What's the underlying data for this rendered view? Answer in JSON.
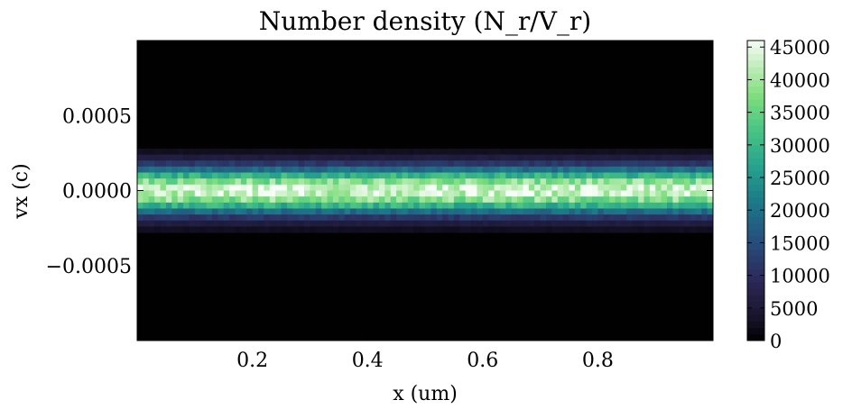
{
  "chart_data": {
    "type": "heatmap",
    "title": "Number density (N_r/V_r)",
    "xlabel": "x (um)",
    "ylabel": "vx (c)",
    "xlim": [
      0.0,
      1.0
    ],
    "ylim": [
      -0.001,
      0.001
    ],
    "x_ticks": [
      {
        "value": 0.2,
        "label": "0.2"
      },
      {
        "value": 0.4,
        "label": "0.4"
      },
      {
        "value": 0.6,
        "label": "0.6"
      },
      {
        "value": 0.8,
        "label": "0.8"
      }
    ],
    "y_ticks": [
      {
        "value": 0.0005,
        "label": "0.0005"
      },
      {
        "value": 0.0,
        "label": "0.0000"
      },
      {
        "value": -0.0005,
        "label": "−0.0005"
      }
    ],
    "colorbar": {
      "min": 0,
      "max": 46000,
      "ticks": [
        {
          "value": 0,
          "label": "0"
        },
        {
          "value": 5000,
          "label": "5000"
        },
        {
          "value": 10000,
          "label": "10000"
        },
        {
          "value": 15000,
          "label": "15000"
        },
        {
          "value": 20000,
          "label": "20000"
        },
        {
          "value": 25000,
          "label": "25000"
        },
        {
          "value": 30000,
          "label": "30000"
        },
        {
          "value": 35000,
          "label": "35000"
        },
        {
          "value": 40000,
          "label": "40000"
        },
        {
          "value": 45000,
          "label": "45000"
        }
      ]
    },
    "colormap": "cmocean deep (reversed): black to navy to teal to green to pale white",
    "grid": false,
    "bins": {
      "nx": 100,
      "ny": 50
    },
    "distribution": {
      "shape": "gaussian in vx, uniform in x with shot noise",
      "center_vx": 0.0,
      "sigma_vx": 0.00011,
      "peak_density": 44000
    }
  }
}
